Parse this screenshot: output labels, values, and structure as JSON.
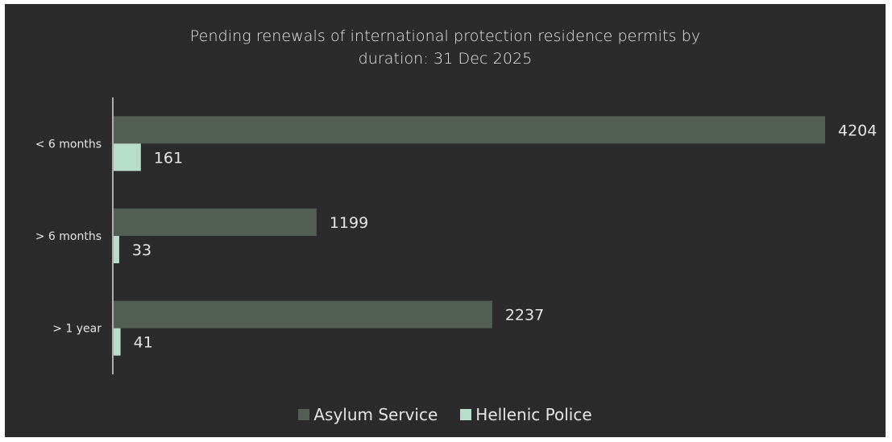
{
  "chart_data": {
    "type": "bar",
    "orientation": "horizontal",
    "title": "Pending renewals of international protection residence permits by duration: 31 Dec 2025",
    "title_lines": [
      "Pending renewals of international protection residence permits by",
      "duration: 31 Dec 2025"
    ],
    "categories": [
      "< 6 months",
      "> 6 months",
      "> 1 year"
    ],
    "series": [
      {
        "name": "Asylum Service",
        "values": [
          4204,
          1199,
          2237
        ],
        "color": "#535e55"
      },
      {
        "name": "Hellenic Police",
        "values": [
          161,
          33,
          41
        ],
        "color": "#b7dec8"
      }
    ],
    "xlim": [
      0,
      4204
    ],
    "grid": false,
    "data_labels": true,
    "legend_position": "bottom"
  },
  "colors": {
    "background": "#2b2b2b",
    "text": "#e6e6e6",
    "axis": "#d9d9d9"
  }
}
